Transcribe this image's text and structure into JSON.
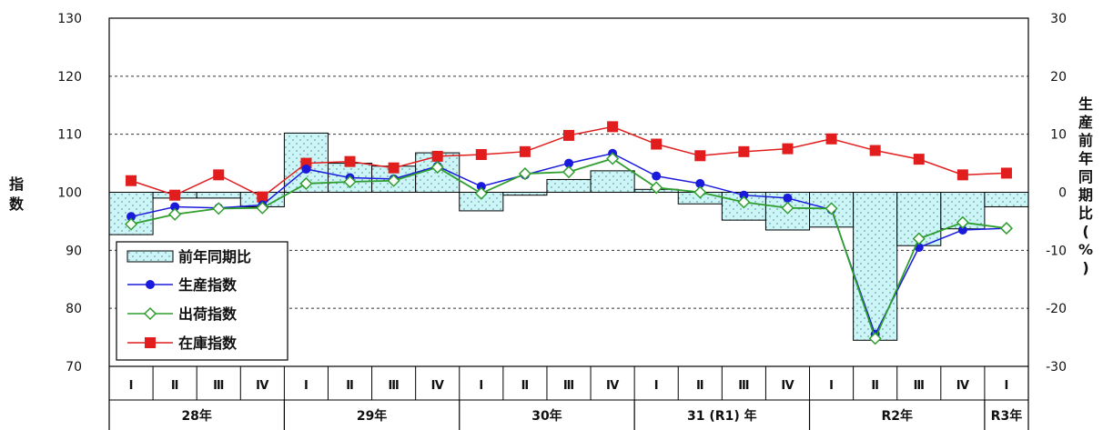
{
  "chart_data": {
    "type": "bar",
    "title": "",
    "ylabel_left": "指数",
    "ylabel_right": "生産前年同期比(%)",
    "ylim_left": [
      70,
      130
    ],
    "ylim_right": [
      -30,
      30
    ],
    "yticks_left": [
      "70",
      "80",
      "90",
      "100",
      "110",
      "120",
      "130"
    ],
    "yticks_right": [
      "-30",
      "-20",
      "-10",
      "0",
      "10",
      "20",
      "30"
    ],
    "grid": "horizontal dashed",
    "legend_position": "bottom-left",
    "categories": [
      "Ⅰ",
      "Ⅱ",
      "Ⅲ",
      "Ⅳ",
      "Ⅰ",
      "Ⅱ",
      "Ⅲ",
      "Ⅳ",
      "Ⅰ",
      "Ⅱ",
      "Ⅲ",
      "Ⅳ",
      "Ⅰ",
      "Ⅱ",
      "Ⅲ",
      "Ⅳ",
      "Ⅰ",
      "Ⅱ",
      "Ⅲ",
      "Ⅳ",
      "Ⅰ"
    ],
    "year_groups": [
      {
        "label": "28年",
        "span": 4
      },
      {
        "label": "29年",
        "span": 4
      },
      {
        "label": "30年",
        "span": 4
      },
      {
        "label": "31 (R1) 年",
        "span": 4
      },
      {
        "label": "R2年",
        "span": 4
      },
      {
        "label": "R3年",
        "span": 1
      }
    ],
    "series": [
      {
        "name": "前年同期比",
        "type": "bar",
        "axis": "right",
        "color": "#ccf5f7",
        "values": [
          -7.3,
          -1.0,
          -1.0,
          -2.5,
          10.2,
          5.0,
          4.5,
          6.8,
          -3.2,
          -0.5,
          2.2,
          3.7,
          0.5,
          -2.0,
          -4.8,
          -6.5,
          -6.0,
          -25.5,
          -9.2,
          -6.3,
          -2.5
        ]
      },
      {
        "name": "生産指数",
        "type": "line",
        "axis": "left",
        "color": "#1a1adc",
        "values": [
          95.8,
          97.5,
          97.3,
          97.8,
          104.0,
          102.5,
          102.3,
          104.5,
          101.0,
          103.0,
          105.0,
          106.7,
          102.8,
          101.5,
          99.5,
          99.0,
          97.0,
          75.5,
          90.5,
          93.5,
          93.8
        ]
      },
      {
        "name": "出荷指数",
        "type": "line",
        "axis": "left",
        "color": "#2e9e2e",
        "values": [
          94.5,
          96.2,
          97.2,
          97.3,
          101.5,
          101.8,
          102.0,
          104.3,
          99.8,
          103.2,
          103.5,
          105.8,
          100.8,
          100.0,
          98.3,
          97.3,
          97.2,
          74.8,
          92.0,
          94.8,
          93.8
        ]
      },
      {
        "name": "在庫指数",
        "type": "line",
        "axis": "left",
        "color": "#e11d1d",
        "values": [
          102.0,
          99.5,
          103.0,
          99.2,
          105.0,
          105.3,
          104.2,
          106.2,
          106.5,
          107.0,
          109.8,
          111.3,
          108.3,
          106.3,
          107.0,
          107.5,
          109.2,
          107.2,
          105.7,
          103.0,
          103.3
        ]
      }
    ]
  }
}
